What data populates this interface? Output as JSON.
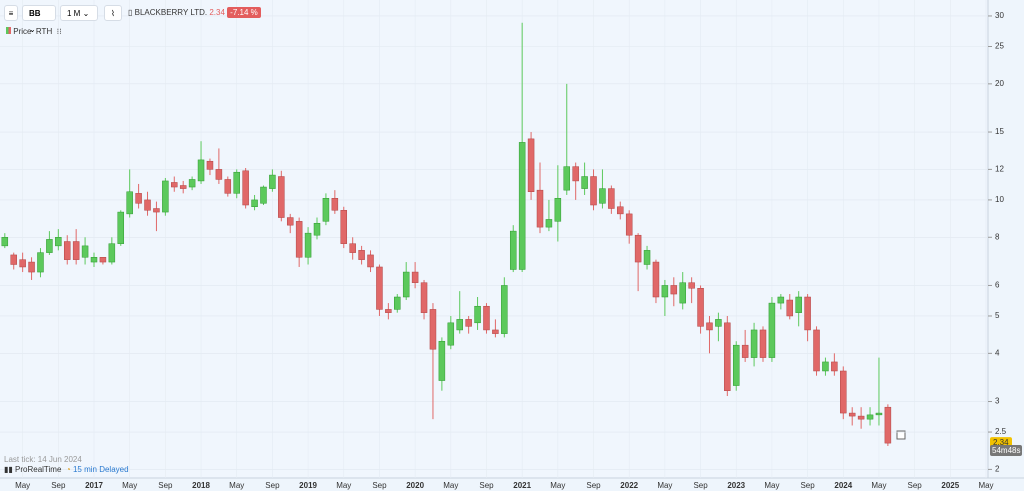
{
  "header": {
    "symbol": "BB",
    "period": "1 M",
    "name": "BLACKBERRY LTD.",
    "price": "2.34",
    "change": "-7.14 %",
    "legend_price": "Price",
    "legend_rth": "RTH",
    "last_tick": "Last tick: 14 Jun 2024",
    "brand": "ProRealTime",
    "delay": "15 min Delayed",
    "countdown": "54m48s"
  },
  "chart_data": {
    "type": "candlestick",
    "log_scale": true,
    "grid": true,
    "up_color": "#5cc95c",
    "down_color": "#e06868",
    "categories": [
      null,
      null,
      "May",
      null,
      null,
      null,
      "Sep",
      null,
      null,
      null,
      "2017",
      null,
      null,
      null,
      "May",
      null,
      null,
      null,
      "Sep",
      null,
      null,
      null,
      "2018",
      null,
      null,
      null,
      "May",
      null,
      null,
      null,
      "Sep",
      null,
      null,
      null,
      "2019",
      null,
      null,
      null,
      "May",
      null,
      null,
      null,
      "Sep",
      null,
      null,
      null,
      "2020",
      null,
      null,
      null,
      "May",
      null,
      null,
      null,
      "Sep",
      null,
      null,
      null,
      "2021",
      null,
      null,
      null,
      "May",
      null,
      null,
      null,
      "Sep",
      null,
      null,
      null,
      "2022",
      null,
      null,
      null,
      "May",
      null,
      null,
      null,
      "Sep",
      null,
      null,
      null,
      "2023",
      null,
      null,
      null,
      "May",
      null,
      null,
      null,
      "Sep",
      null,
      null,
      null,
      "2024",
      null,
      null,
      null,
      "May",
      null,
      null,
      null,
      "Sep",
      null,
      null,
      null,
      "2025",
      null,
      null,
      null,
      "May"
    ],
    "open": [
      7.6,
      7.2,
      7.0,
      6.9,
      6.5,
      7.3,
      7.6,
      7.8,
      7.8,
      7.1,
      6.9,
      7.1,
      6.9,
      7.7,
      9.2,
      10.4,
      10,
      9.5,
      9.3,
      11.1,
      10.9,
      10.8,
      11.2,
      12.6,
      12.0,
      11.3,
      10.4,
      11.9,
      9.6,
      9.8,
      10.7,
      11.5,
      9.0,
      8.8,
      7.1,
      8.1,
      8.8,
      10.1,
      9.4,
      7.7,
      7.4,
      7.2,
      6.7,
      5.2,
      5.2,
      5.6,
      6.5,
      6.1,
      5.2,
      3.4,
      4.2,
      4.6,
      4.9,
      4.8,
      5.3,
      4.6,
      4.5,
      6.6,
      6.6,
      14.4,
      10.6,
      8.5,
      8.8,
      10.6,
      12.2,
      10.7,
      11.5,
      9.8,
      10.7,
      9.6,
      9.2,
      8.1,
      6.8,
      6.9,
      5.6,
      6.0,
      5.4,
      6.1,
      5.9,
      4.8,
      4.7,
      4.8,
      3.3,
      4.2,
      3.9,
      4.6,
      3.9,
      5.4,
      5.5,
      5.1,
      5.6,
      4.6,
      3.6,
      3.8,
      3.6,
      2.8,
      2.75,
      2.7,
      2.77,
      2.9,
      null,
      null,
      null,
      null,
      null,
      null,
      null,
      null,
      null,
      null,
      null
    ],
    "high": [
      8.2,
      7.3,
      7.3,
      7.1,
      7.5,
      8.3,
      8.4,
      8.1,
      8.4,
      8.0,
      7.3,
      7.1,
      8.0,
      9.4,
      12.0,
      11,
      10.5,
      9.9,
      11.4,
      11.5,
      11.2,
      11.5,
      14.2,
      12.8,
      13.6,
      11.5,
      12.0,
      12.1,
      10.3,
      10.9,
      12.0,
      11.9,
      9.2,
      9.0,
      8.5,
      9.0,
      10.4,
      10.6,
      9.6,
      8.0,
      7.6,
      7.4,
      6.8,
      5.4,
      5.7,
      6.9,
      6.9,
      6.2,
      5.4,
      4.4,
      5.0,
      5.8,
      5.0,
      5.6,
      5.4,
      4.9,
      6.3,
      8.6,
      28.8,
      15.0,
      12.5,
      10.0,
      12.3,
      20.0,
      12.5,
      12.5,
      12.0,
      12.0,
      10.9,
      9.9,
      9.4,
      8.2,
      7.6,
      7.0,
      6.2,
      6.3,
      6.5,
      6.3,
      6.0,
      5.0,
      5.1,
      5.0,
      4.3,
      4.6,
      4.8,
      4.7,
      5.6,
      5.7,
      5.7,
      5.8,
      5.7,
      4.7,
      3.9,
      4.0,
      3.7,
      2.9,
      2.9,
      2.9,
      3.9,
      2.95,
      null,
      null,
      null,
      null,
      null,
      null,
      null,
      null,
      null,
      null,
      null
    ],
    "low": [
      7.5,
      6.6,
      6.5,
      6.2,
      6.3,
      7.2,
      7.4,
      6.8,
      6.8,
      6.8,
      6.7,
      6.8,
      6.8,
      7.6,
      9.0,
      9.5,
      9.1,
      8.3,
      9.1,
      10.5,
      10.4,
      10.6,
      11.0,
      11.6,
      11.0,
      10.2,
      10.1,
      9.5,
      9.4,
      9.7,
      10.5,
      8.8,
      8.2,
      6.7,
      6.8,
      7.9,
      8.6,
      9.2,
      7.5,
      7.0,
      6.8,
      6.5,
      5.0,
      4.9,
      5.1,
      5.5,
      5.9,
      4.9,
      2.7,
      3.2,
      4.1,
      4.5,
      4.5,
      4.6,
      4.5,
      4.4,
      4.4,
      6.5,
      6.5,
      10.0,
      8.2,
      8.3,
      7.8,
      10.3,
      10.0,
      10.3,
      9.4,
      9.5,
      9.2,
      8.9,
      7.7,
      5.8,
      6.6,
      5.4,
      5.0,
      5.3,
      5.2,
      5.4,
      4.5,
      4.0,
      4.3,
      3.1,
      3.2,
      3.8,
      3.7,
      3.8,
      3.8,
      5.2,
      4.9,
      4.7,
      4.3,
      3.5,
      3.5,
      3.5,
      2.7,
      2.6,
      2.55,
      2.6,
      2.6,
      2.3,
      null,
      null,
      null,
      null,
      null,
      null,
      null,
      null,
      null,
      null,
      null
    ],
    "close": [
      8.0,
      6.8,
      6.7,
      6.5,
      7.3,
      7.9,
      8.0,
      7.0,
      7.0,
      7.6,
      7.1,
      6.9,
      7.7,
      9.3,
      10.5,
      9.8,
      9.4,
      9.3,
      11.2,
      10.8,
      10.7,
      11.3,
      12.7,
      12.0,
      11.3,
      10.4,
      11.8,
      9.7,
      10.0,
      10.8,
      11.6,
      9.0,
      8.6,
      7.1,
      8.2,
      8.7,
      10.1,
      9.4,
      7.7,
      7.3,
      7.0,
      6.7,
      5.2,
      5.1,
      5.6,
      6.5,
      6.1,
      5.1,
      4.1,
      4.3,
      4.8,
      4.9,
      4.7,
      5.3,
      4.6,
      4.5,
      6.0,
      8.3,
      14.1,
      10.5,
      8.5,
      8.9,
      10.1,
      12.2,
      11.2,
      11.5,
      9.7,
      10.7,
      9.5,
      9.2,
      8.1,
      6.9,
      7.4,
      5.6,
      6.0,
      5.7,
      6.1,
      5.9,
      4.7,
      4.6,
      4.9,
      3.2,
      4.2,
      3.9,
      4.6,
      3.9,
      5.4,
      5.6,
      5.0,
      5.6,
      4.6,
      3.6,
      3.8,
      3.6,
      2.8,
      2.75,
      2.7,
      2.77,
      2.8,
      2.34,
      null,
      null,
      null,
      null,
      null,
      null,
      null,
      null,
      null,
      null,
      null
    ],
    "ylim": [
      1.9,
      33
    ],
    "yticks": [
      2,
      2.5,
      3,
      4,
      5,
      6,
      8,
      10,
      12,
      15,
      20,
      25,
      30
    ],
    "last_price": {
      "value": 2.34,
      "label": "2,34"
    }
  }
}
